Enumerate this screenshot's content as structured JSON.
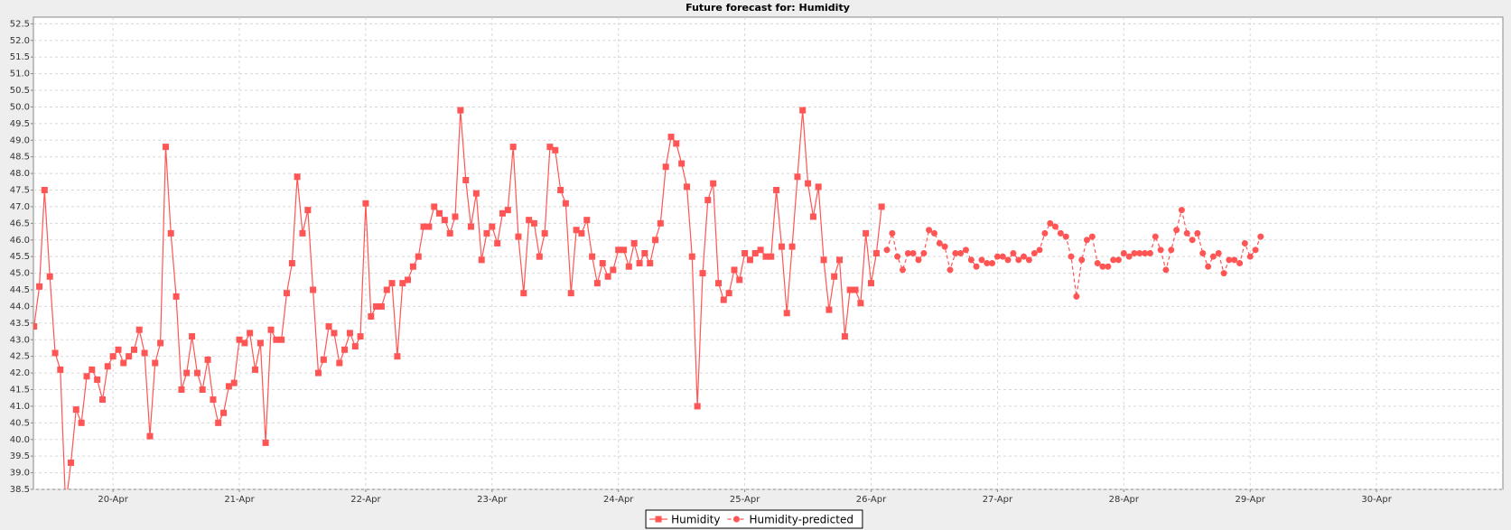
{
  "chart_data": {
    "type": "line",
    "title": "Future forecast for: Humidity",
    "xlim": [
      19.37,
      31.0
    ],
    "xticks": [
      {
        "value": 20,
        "label": "20-Apr"
      },
      {
        "value": 21,
        "label": "21-Apr"
      },
      {
        "value": 22,
        "label": "22-Apr"
      },
      {
        "value": 23,
        "label": "23-Apr"
      },
      {
        "value": 24,
        "label": "24-Apr"
      },
      {
        "value": 25,
        "label": "25-Apr"
      },
      {
        "value": 26,
        "label": "26-Apr"
      },
      {
        "value": 27,
        "label": "27-Apr"
      },
      {
        "value": 28,
        "label": "28-Apr"
      },
      {
        "value": 29,
        "label": "29-Apr"
      },
      {
        "value": 30,
        "label": "30-Apr"
      }
    ],
    "ylim": [
      38.5,
      52.7
    ],
    "yticks": [
      38.5,
      {
        "value": 39,
        "label": "39.0"
      },
      39.5,
      {
        "value": 40,
        "label": "40.0"
      },
      40.5,
      {
        "value": 41,
        "label": "41.0"
      },
      41.5,
      {
        "value": 42,
        "label": "42.0"
      },
      42.5,
      {
        "value": 43,
        "label": "43.0"
      },
      43.5,
      {
        "value": 44,
        "label": "44.0"
      },
      44.5,
      {
        "value": 45,
        "label": "45.0"
      },
      45.5,
      {
        "value": 46,
        "label": "46.0"
      },
      46.5,
      {
        "value": 47,
        "label": "47.0"
      },
      47.5,
      {
        "value": 48,
        "label": "48.0"
      },
      48.5,
      {
        "value": 49,
        "label": "49.0"
      },
      49.5,
      {
        "value": 50,
        "label": "50.0"
      },
      50.5,
      {
        "value": 51,
        "label": "51.0"
      },
      51.5,
      {
        "value": 52,
        "label": "52.0"
      },
      52.5
    ],
    "grid": true,
    "series": [
      {
        "name": "Humidity",
        "color": "#ff5555",
        "marker": "square",
        "dashed": false,
        "x": [
          19.375,
          19.417,
          19.458,
          19.5,
          19.542,
          19.583,
          19.625,
          19.667,
          19.708,
          19.75,
          19.792,
          19.833,
          19.875,
          19.917,
          19.958,
          20,
          20.042,
          20.083,
          20.125,
          20.167,
          20.208,
          20.25,
          20.292,
          20.333,
          20.375,
          20.417,
          20.458,
          20.5,
          20.542,
          20.583,
          20.625,
          20.667,
          20.708,
          20.75,
          20.792,
          20.833,
          20.875,
          20.917,
          20.958,
          21,
          21.042,
          21.083,
          21.125,
          21.167,
          21.208,
          21.25,
          21.292,
          21.333,
          21.375,
          21.417,
          21.458,
          21.5,
          21.542,
          21.583,
          21.625,
          21.667,
          21.708,
          21.75,
          21.792,
          21.833,
          21.875,
          21.917,
          21.958,
          22,
          22.042,
          22.083,
          22.125,
          22.167,
          22.208,
          22.25,
          22.292,
          22.333,
          22.375,
          22.417,
          22.458,
          22.5,
          22.542,
          22.583,
          22.625,
          22.667,
          22.708,
          22.75,
          22.792,
          22.833,
          22.875,
          22.917,
          22.958,
          23,
          23.042,
          23.083,
          23.125,
          23.167,
          23.208,
          23.25,
          23.292,
          23.333,
          23.375,
          23.417,
          23.458,
          23.5,
          23.542,
          23.583,
          23.625,
          23.667,
          23.708,
          23.75,
          23.792,
          23.833,
          23.875,
          23.917,
          23.958,
          24,
          24.042,
          24.083,
          24.125,
          24.167,
          24.208,
          24.25,
          24.292,
          24.333,
          24.375,
          24.417,
          24.458,
          24.5,
          24.542,
          24.583,
          24.625,
          24.667,
          24.708,
          24.75,
          24.792,
          24.833,
          24.875,
          24.917,
          24.958,
          25,
          25.042,
          25.083,
          25.125,
          25.167,
          25.208,
          25.25,
          25.292,
          25.333,
          25.375,
          25.417,
          25.458,
          25.5,
          25.542,
          25.583,
          25.625,
          25.667,
          25.708,
          25.75,
          25.792,
          25.833,
          25.875,
          25.917,
          25.958,
          26,
          26.042,
          26.083
        ],
        "values": [
          43.4,
          44.6,
          47.5,
          44.9,
          42.6,
          42.1,
          38.0,
          39.3,
          40.9,
          40.5,
          41.9,
          42.1,
          41.8,
          41.2,
          42.2,
          42.5,
          42.7,
          42.3,
          42.5,
          42.7,
          43.3,
          42.6,
          40.1,
          42.3,
          42.9,
          48.8,
          46.2,
          44.3,
          41.5,
          42.0,
          43.1,
          42.0,
          41.5,
          42.4,
          41.2,
          40.5,
          40.8,
          41.6,
          41.7,
          43.0,
          42.9,
          43.2,
          42.1,
          42.9,
          39.9,
          43.3,
          43.0,
          43.0,
          44.4,
          45.3,
          47.9,
          46.2,
          46.9,
          44.5,
          42.0,
          42.4,
          43.4,
          43.2,
          42.3,
          42.7,
          43.2,
          42.8,
          43.1,
          47.1,
          43.7,
          44.0,
          44.0,
          44.5,
          44.7,
          42.5,
          44.7,
          44.8,
          45.2,
          45.5,
          46.4,
          46.4,
          47.0,
          46.8,
          46.6,
          46.2,
          46.7,
          49.9,
          47.8,
          46.4,
          47.4,
          45.4,
          46.2,
          46.4,
          45.9,
          46.8,
          46.9,
          48.8,
          46.1,
          44.4,
          46.6,
          46.5,
          45.5,
          46.2,
          48.8,
          48.7,
          47.5,
          47.1,
          44.4,
          46.3,
          46.2,
          46.6,
          45.5,
          44.7,
          45.3,
          44.9,
          45.1,
          45.7,
          45.7,
          45.2,
          45.9,
          45.3,
          45.6,
          45.3,
          46.0,
          46.5,
          48.2,
          49.1,
          48.9,
          48.3,
          47.6,
          45.5,
          41.0,
          45.0,
          47.2,
          47.7,
          44.7,
          44.2,
          44.4,
          45.1,
          44.8,
          45.6,
          45.4,
          45.6,
          45.7,
          45.5,
          45.5,
          47.5,
          45.8,
          43.8,
          45.8,
          47.9,
          49.9,
          47.7,
          46.7,
          47.6,
          45.4,
          43.9,
          44.9,
          45.4,
          43.1,
          44.5,
          44.5,
          44.1,
          46.2,
          44.7,
          45.6,
          47.0
        ]
      },
      {
        "name": "Humidity-predicted",
        "color": "#ff5555",
        "marker": "circle",
        "dashed": true,
        "x": [
          26.125,
          26.167,
          26.208,
          26.25,
          26.292,
          26.333,
          26.375,
          26.417,
          26.458,
          26.5,
          26.542,
          26.583,
          26.625,
          26.667,
          26.708,
          26.75,
          26.792,
          26.833,
          26.875,
          26.917,
          26.958,
          27,
          27.042,
          27.083,
          27.125,
          27.167,
          27.208,
          27.25,
          27.292,
          27.333,
          27.375,
          27.417,
          27.458,
          27.5,
          27.542,
          27.583,
          27.625,
          27.667,
          27.708,
          27.75,
          27.792,
          27.833,
          27.875,
          27.917,
          27.958,
          28,
          28.042,
          28.083,
          28.125,
          28.167,
          28.208,
          28.25,
          28.292,
          28.333,
          28.375,
          28.417,
          28.458,
          28.5,
          28.542,
          28.583,
          28.625,
          28.667,
          28.708,
          28.75,
          28.792,
          28.833,
          28.875,
          28.917,
          28.958,
          29,
          29.042,
          29.083
        ],
        "values": [
          45.7,
          46.2,
          45.5,
          45.1,
          45.6,
          45.6,
          45.4,
          45.6,
          46.3,
          46.2,
          45.9,
          45.8,
          45.1,
          45.6,
          45.6,
          45.7,
          45.4,
          45.2,
          45.4,
          45.3,
          45.3,
          45.5,
          45.5,
          45.4,
          45.6,
          45.4,
          45.5,
          45.4,
          45.6,
          45.7,
          46.2,
          46.5,
          46.4,
          46.2,
          46.1,
          45.5,
          44.3,
          45.4,
          46.0,
          46.1,
          45.3,
          45.2,
          45.2,
          45.4,
          45.4,
          45.6,
          45.5,
          45.6,
          45.6,
          45.6,
          45.6,
          46.1,
          45.7,
          45.1,
          45.7,
          46.3,
          46.9,
          46.2,
          46.0,
          46.2,
          45.6,
          45.2,
          45.5,
          45.6,
          45.0,
          45.4,
          45.4,
          45.3,
          45.9,
          45.5,
          45.7,
          46.1
        ]
      }
    ]
  }
}
